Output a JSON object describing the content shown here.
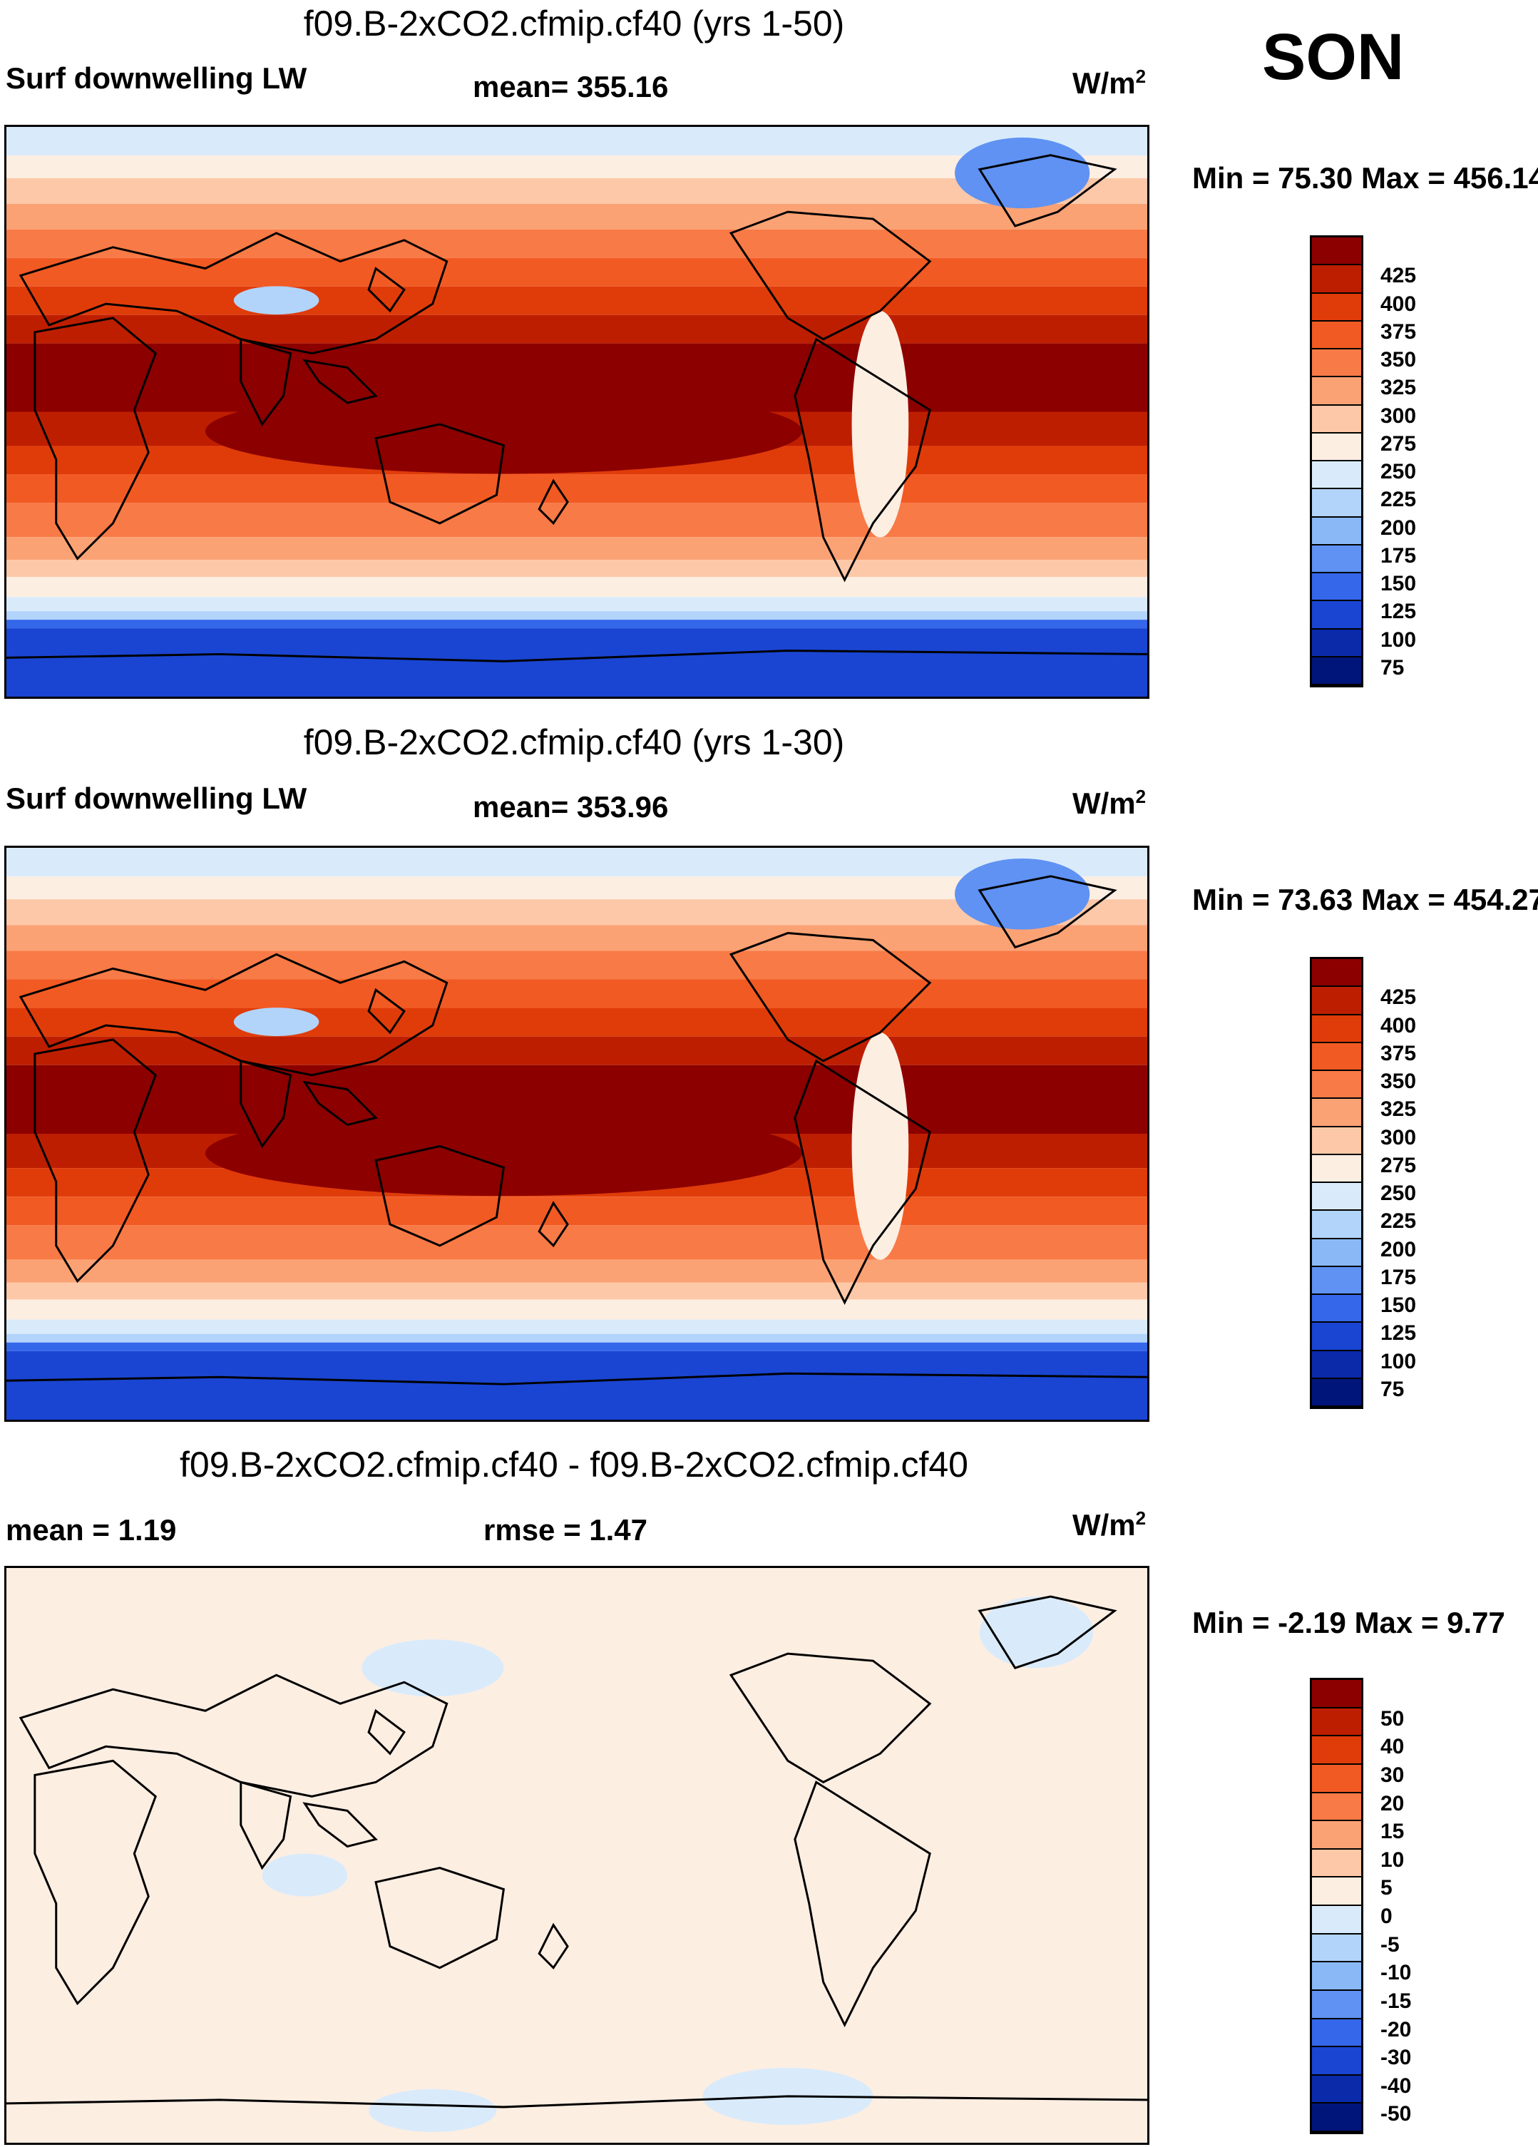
{
  "season": "SON",
  "panels": [
    {
      "title": "f09.B-2xCO2.cfmip.cf40 (yrs 1-50)",
      "left_label": "Surf downwelling LW",
      "center_label": "mean= 355.16",
      "unit": "W/m",
      "unit_exp": "2",
      "minmax": "Min =  75.30 Max = 456.14",
      "map_type": "field",
      "colorbar": {
        "colors": [
          "#8c0000",
          "#be1e00",
          "#e03c0a",
          "#f25a23",
          "#f87a46",
          "#fba275",
          "#fdc8a8",
          "#fdeee2",
          "#d9ebfb",
          "#b2d4fb",
          "#8ab8f7",
          "#5f92f2",
          "#3567eb",
          "#1a45d2",
          "#0a2aaa",
          "#00157a"
        ],
        "labels": [
          "425",
          "400",
          "375",
          "350",
          "325",
          "300",
          "275",
          "250",
          "225",
          "200",
          "175",
          "150",
          "125",
          "100",
          "75"
        ]
      }
    },
    {
      "title": "f09.B-2xCO2.cfmip.cf40 (yrs 1-30)",
      "left_label": "Surf downwelling LW",
      "center_label": "mean= 353.96",
      "unit": "W/m",
      "unit_exp": "2",
      "minmax": "Min =  73.63 Max = 454.27",
      "map_type": "field",
      "colorbar": {
        "colors": [
          "#8c0000",
          "#be1e00",
          "#e03c0a",
          "#f25a23",
          "#f87a46",
          "#fba275",
          "#fdc8a8",
          "#fdeee2",
          "#d9ebfb",
          "#b2d4fb",
          "#8ab8f7",
          "#5f92f2",
          "#3567eb",
          "#1a45d2",
          "#0a2aaa",
          "#00157a"
        ],
        "labels": [
          "425",
          "400",
          "375",
          "350",
          "325",
          "300",
          "275",
          "250",
          "225",
          "200",
          "175",
          "150",
          "125",
          "100",
          "75"
        ]
      }
    },
    {
      "title": "f09.B-2xCO2.cfmip.cf40 - f09.B-2xCO2.cfmip.cf40",
      "left_label": "mean =   1.19",
      "center_label": "rmse =   1.47",
      "unit": "W/m",
      "unit_exp": "2",
      "minmax": "Min =  -2.19 Max =   9.77",
      "map_type": "difference",
      "colorbar": {
        "colors": [
          "#8c0000",
          "#be1e00",
          "#e03c0a",
          "#f25a23",
          "#f87a46",
          "#fba275",
          "#fdc8a8",
          "#fdeee2",
          "#d9ebfb",
          "#b2d4fb",
          "#8ab8f7",
          "#5f92f2",
          "#3567eb",
          "#1a45d2",
          "#0a2aaa",
          "#00157a"
        ],
        "labels": [
          "50",
          "40",
          "30",
          "20",
          "15",
          "10",
          "5",
          "0",
          "-5",
          "-10",
          "-15",
          "-20",
          "-30",
          "-40",
          "-50"
        ]
      }
    }
  ]
}
